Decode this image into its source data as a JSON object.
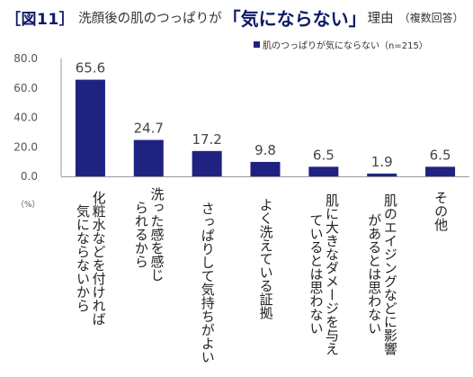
{
  "header": {
    "badge": "［図11］",
    "main": "洗顔後の肌のつっぱりが",
    "emphasis": "「気にならない」",
    "tail": "理由",
    "note": "（複数回答）"
  },
  "legend": {
    "series_label": "肌のつっぱりが気にならない（n=215）"
  },
  "unit_label": "（%）",
  "chart_data": {
    "type": "bar",
    "title": "洗顔後の肌のつっぱりが「気にならない」理由",
    "categories": [
      "化粧水などを付ければ気にならないから",
      "洗った感を感じられるから",
      "さっぱりして気持ちがよい",
      "よく洗えている証拠",
      "肌に大きなダメージを与えているとは思わない",
      "肌のエイジングなどに影響があるとは思わない",
      "その他"
    ],
    "series": [
      {
        "name": "肌のつっぱりが気にならない（n=215）",
        "values": [
          65.6,
          24.7,
          17.2,
          9.8,
          6.5,
          1.9,
          6.5
        ]
      }
    ],
    "ylim": [
      0,
      80
    ],
    "yticks": [
      "0.0",
      "20.0",
      "40.0",
      "60.0",
      "80.0"
    ],
    "value_labels": [
      "65.6",
      "24.7",
      "17.2",
      "9.8",
      "6.5",
      "1.9",
      "6.5"
    ],
    "ylabel": "%",
    "grid": false,
    "legend_position": "top-right",
    "colors": {
      "bar": "#1f2280",
      "axis": "#9a9a9a"
    }
  }
}
